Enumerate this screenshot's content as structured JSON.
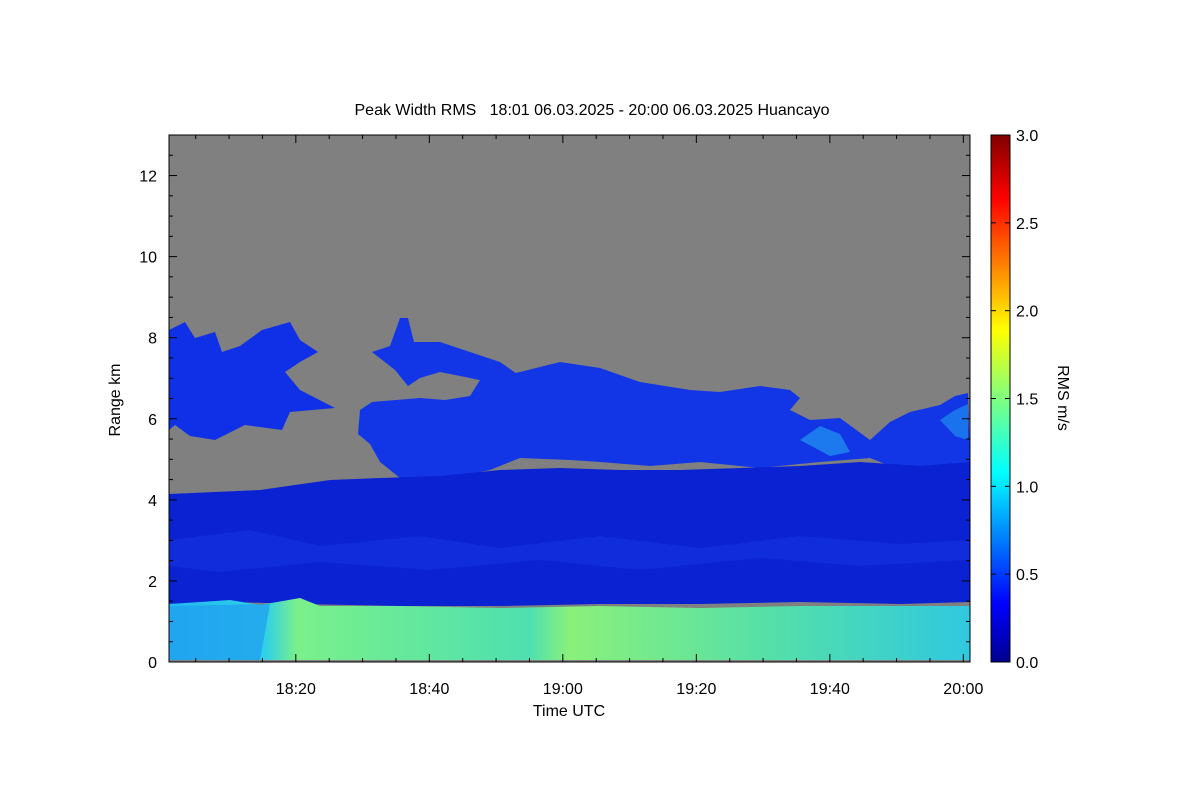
{
  "chart_data": {
    "type": "heatmap",
    "title": "Peak Width RMS   18:01 06.03.2025 - 20:00 06.03.2025 Huancayo",
    "xlabel": "Time UTC",
    "ylabel": "Range km",
    "x_ticks": [
      "18:20",
      "18:40",
      "19:00",
      "19:20",
      "19:40",
      "20:00"
    ],
    "x_tick_minutes": [
      20,
      40,
      60,
      80,
      100,
      120
    ],
    "xlim_minutes": [
      1,
      121
    ],
    "y_ticks": [
      0,
      2,
      4,
      6,
      8,
      10,
      12
    ],
    "ylim": [
      0,
      13
    ],
    "colorbar": {
      "label": "RMS m/s",
      "ticks": [
        "0.0",
        "0.5",
        "1.0",
        "1.5",
        "2.0",
        "2.5",
        "3.0"
      ],
      "range": [
        0,
        3
      ],
      "colormap": "jet"
    },
    "no_data_color": "#808080",
    "layers": [
      {
        "description_range_km": [
          0.1,
          1.5
        ],
        "typical_rms": 1.05
      },
      {
        "description_range_km": [
          1.6,
          4.6
        ],
        "typical_rms": 0.3
      },
      {
        "description_range_km": [
          4.5,
          8.5
        ],
        "typical_rms": 0.45
      }
    ],
    "grid": false
  }
}
